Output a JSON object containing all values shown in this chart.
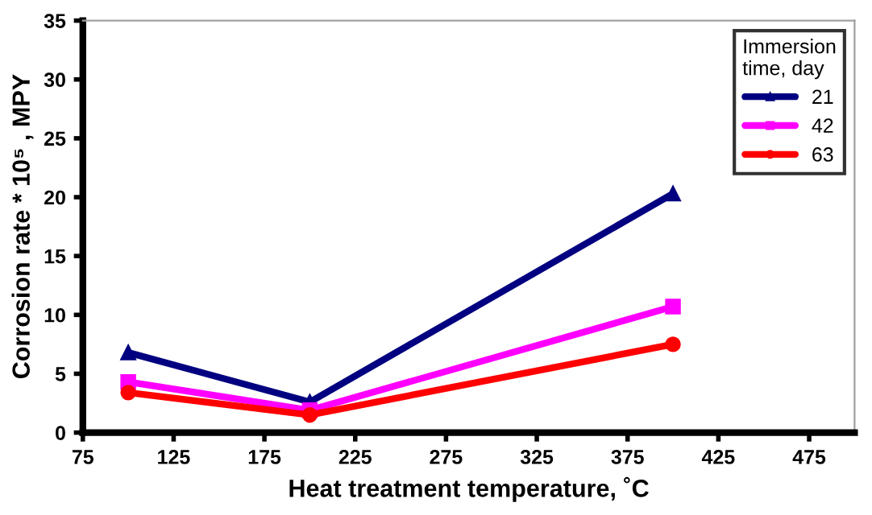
{
  "chart_data": {
    "type": "line",
    "xlabel": "Heat treatment temperature, ˚C",
    "ylabel": "Corrosion rate * 10⁵ , MPY",
    "legend_title": "Immersion\ntime, day",
    "x": [
      100,
      200,
      400
    ],
    "series": [
      {
        "name": "21",
        "color": "#000080",
        "marker": "triangle",
        "values": [
          6.8,
          2.6,
          20.3
        ]
      },
      {
        "name": "42",
        "color": "#ff00ff",
        "marker": "square",
        "values": [
          4.3,
          1.9,
          10.7
        ]
      },
      {
        "name": "63",
        "color": "#ff0000",
        "marker": "circle",
        "values": [
          3.4,
          1.5,
          7.5
        ]
      }
    ],
    "xlim": [
      75,
      500
    ],
    "ylim": [
      0,
      35
    ],
    "xticks": [
      75,
      125,
      175,
      225,
      275,
      325,
      375,
      425,
      475
    ],
    "yticks": [
      0,
      5,
      10,
      15,
      20,
      25,
      30,
      35
    ],
    "grid": false,
    "legend": "top right",
    "line_style": "solid"
  }
}
